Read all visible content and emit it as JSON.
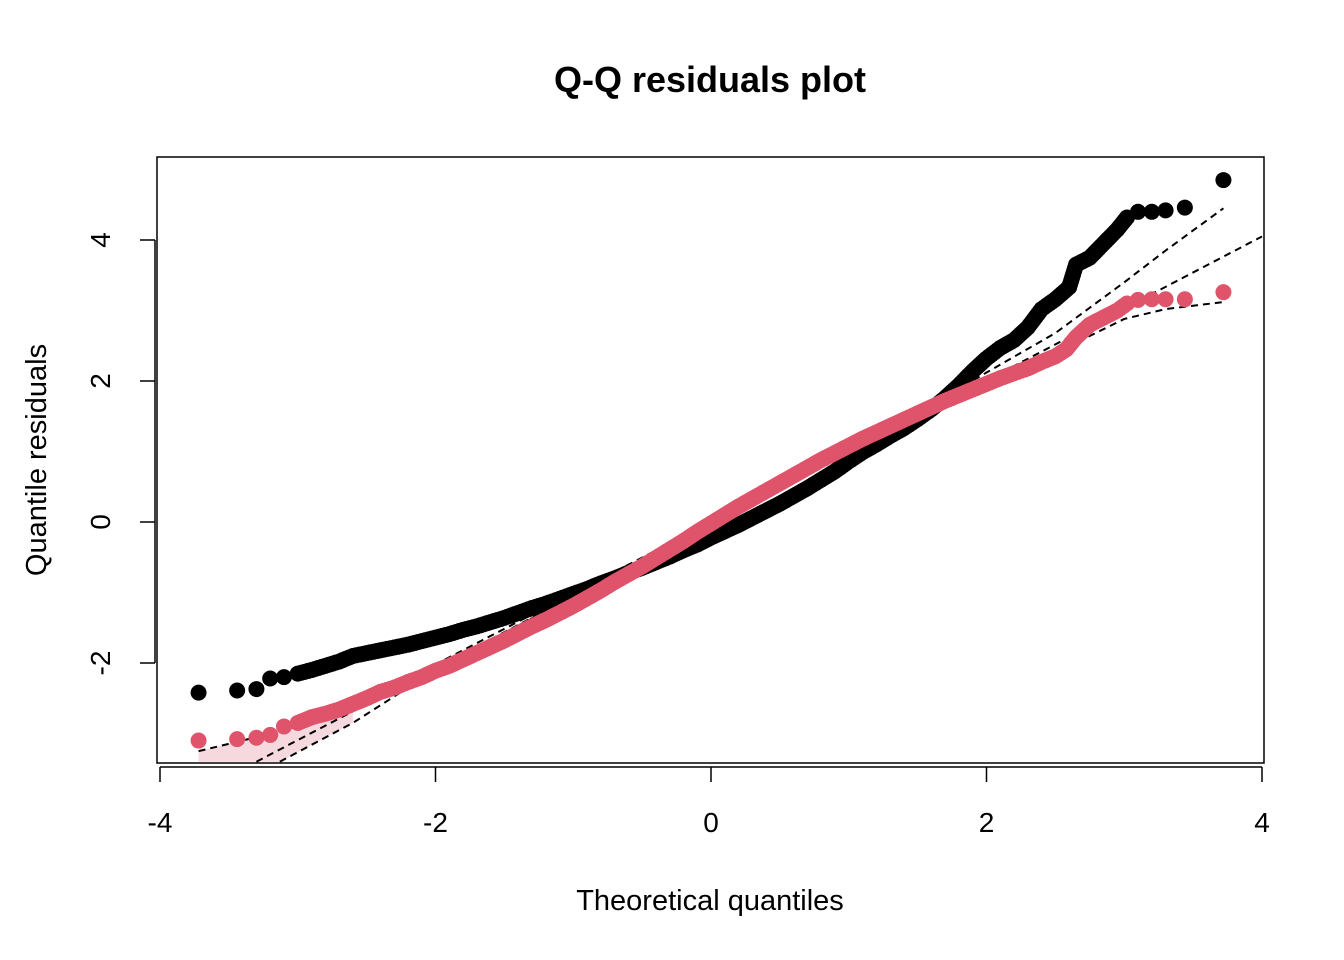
{
  "chart_data": {
    "type": "scatter",
    "title": "Q-Q residuals plot",
    "xlabel": "Theoretical quantiles",
    "ylabel": "Quantile residuals",
    "xlim": [
      -4,
      4
    ],
    "ylim": [
      -3.4,
      5.2
    ],
    "x_ticks": [
      "-4",
      "-2",
      "0",
      "2",
      "4"
    ],
    "y_ticks": [
      "-2",
      "0",
      "2",
      "4"
    ],
    "grid": false,
    "legend": "none",
    "series": [
      {
        "color": "#000000",
        "points": [
          [
            -3.72,
            -2.42
          ],
          [
            -3.44,
            -2.39
          ],
          [
            -3.3,
            -2.37
          ],
          [
            -3.2,
            -2.22
          ],
          [
            -3.1,
            -2.2
          ],
          [
            -3.0,
            -2.15
          ],
          [
            -2.9,
            -2.1
          ],
          [
            -2.8,
            -2.04
          ],
          [
            -2.7,
            -1.98
          ],
          [
            -2.6,
            -1.9
          ],
          [
            -2.5,
            -1.86
          ],
          [
            -2.4,
            -1.82
          ],
          [
            -2.3,
            -1.78
          ],
          [
            -2.2,
            -1.74
          ],
          [
            -2.1,
            -1.69
          ],
          [
            -2.0,
            -1.64
          ],
          [
            -1.9,
            -1.59
          ],
          [
            -1.8,
            -1.53
          ],
          [
            -1.7,
            -1.48
          ],
          [
            -1.6,
            -1.42
          ],
          [
            -1.5,
            -1.36
          ],
          [
            -1.4,
            -1.29
          ],
          [
            -1.3,
            -1.22
          ],
          [
            -1.2,
            -1.16
          ],
          [
            -1.1,
            -1.09
          ],
          [
            -1.0,
            -1.02
          ],
          [
            -0.9,
            -0.95
          ],
          [
            -0.8,
            -0.87
          ],
          [
            -0.7,
            -0.8
          ],
          [
            -0.6,
            -0.72
          ],
          [
            -0.5,
            -0.65
          ],
          [
            -0.4,
            -0.57
          ],
          [
            -0.3,
            -0.49
          ],
          [
            -0.2,
            -0.4
          ],
          [
            -0.1,
            -0.32
          ],
          [
            0.0,
            -0.22
          ],
          [
            0.1,
            -0.13
          ],
          [
            0.2,
            -0.04
          ],
          [
            0.3,
            0.06
          ],
          [
            0.4,
            0.16
          ],
          [
            0.5,
            0.26
          ],
          [
            0.6,
            0.37
          ],
          [
            0.7,
            0.48
          ],
          [
            0.8,
            0.6
          ],
          [
            0.9,
            0.72
          ],
          [
            1.0,
            0.86
          ],
          [
            1.1,
            0.99
          ],
          [
            1.2,
            1.1
          ],
          [
            1.3,
            1.22
          ],
          [
            1.4,
            1.33
          ],
          [
            1.5,
            1.46
          ],
          [
            1.6,
            1.6
          ],
          [
            1.7,
            1.76
          ],
          [
            1.8,
            1.94
          ],
          [
            1.9,
            2.14
          ],
          [
            2.0,
            2.32
          ],
          [
            2.1,
            2.47
          ],
          [
            2.2,
            2.58
          ],
          [
            2.3,
            2.76
          ],
          [
            2.4,
            3.02
          ],
          [
            2.5,
            3.16
          ],
          [
            2.6,
            3.33
          ],
          [
            2.65,
            3.65
          ],
          [
            2.75,
            3.75
          ],
          [
            2.85,
            3.95
          ],
          [
            2.95,
            4.15
          ],
          [
            3.02,
            4.32
          ],
          [
            3.1,
            4.4
          ],
          [
            3.2,
            4.4
          ],
          [
            3.3,
            4.42
          ],
          [
            3.44,
            4.46
          ],
          [
            3.72,
            4.85
          ]
        ]
      },
      {
        "color": "#DF536B",
        "points": [
          [
            -3.72,
            -3.1
          ],
          [
            -3.44,
            -3.08
          ],
          [
            -3.3,
            -3.06
          ],
          [
            -3.2,
            -3.02
          ],
          [
            -3.1,
            -2.9
          ],
          [
            -3.0,
            -2.85
          ],
          [
            -2.9,
            -2.77
          ],
          [
            -2.8,
            -2.72
          ],
          [
            -2.7,
            -2.66
          ],
          [
            -2.6,
            -2.58
          ],
          [
            -2.5,
            -2.5
          ],
          [
            -2.4,
            -2.41
          ],
          [
            -2.3,
            -2.35
          ],
          [
            -2.2,
            -2.27
          ],
          [
            -2.1,
            -2.2
          ],
          [
            -2.0,
            -2.11
          ],
          [
            -1.9,
            -2.04
          ],
          [
            -1.8,
            -1.95
          ],
          [
            -1.7,
            -1.86
          ],
          [
            -1.6,
            -1.77
          ],
          [
            -1.5,
            -1.68
          ],
          [
            -1.4,
            -1.58
          ],
          [
            -1.3,
            -1.48
          ],
          [
            -1.2,
            -1.39
          ],
          [
            -1.1,
            -1.29
          ],
          [
            -1.0,
            -1.19
          ],
          [
            -0.9,
            -1.08
          ],
          [
            -0.8,
            -0.97
          ],
          [
            -0.7,
            -0.85
          ],
          [
            -0.6,
            -0.74
          ],
          [
            -0.5,
            -0.63
          ],
          [
            -0.4,
            -0.51
          ],
          [
            -0.3,
            -0.39
          ],
          [
            -0.2,
            -0.27
          ],
          [
            -0.1,
            -0.14
          ],
          [
            0.0,
            -0.02
          ],
          [
            0.1,
            0.1
          ],
          [
            0.2,
            0.22
          ],
          [
            0.3,
            0.33
          ],
          [
            0.4,
            0.44
          ],
          [
            0.5,
            0.55
          ],
          [
            0.6,
            0.66
          ],
          [
            0.7,
            0.77
          ],
          [
            0.8,
            0.88
          ],
          [
            0.9,
            0.98
          ],
          [
            1.0,
            1.08
          ],
          [
            1.1,
            1.18
          ],
          [
            1.2,
            1.27
          ],
          [
            1.3,
            1.36
          ],
          [
            1.4,
            1.45
          ],
          [
            1.5,
            1.54
          ],
          [
            1.6,
            1.63
          ],
          [
            1.7,
            1.72
          ],
          [
            1.8,
            1.8
          ],
          [
            1.9,
            1.88
          ],
          [
            2.0,
            1.96
          ],
          [
            2.1,
            2.04
          ],
          [
            2.2,
            2.11
          ],
          [
            2.3,
            2.18
          ],
          [
            2.4,
            2.27
          ],
          [
            2.5,
            2.35
          ],
          [
            2.58,
            2.45
          ],
          [
            2.65,
            2.62
          ],
          [
            2.75,
            2.8
          ],
          [
            2.85,
            2.9
          ],
          [
            2.95,
            3.0
          ],
          [
            3.02,
            3.1
          ],
          [
            3.1,
            3.15
          ],
          [
            3.2,
            3.16
          ],
          [
            3.3,
            3.16
          ],
          [
            3.44,
            3.16
          ],
          [
            3.72,
            3.26
          ]
        ]
      }
    ],
    "reference_lines": [
      {
        "style": "dashed",
        "points": [
          [
            -3.3,
            -3.4
          ],
          [
            4.0,
            4.05
          ]
        ]
      },
      {
        "style": "dashed",
        "points": [
          [
            -3.13,
            -3.4
          ],
          [
            -2.6,
            -2.85
          ],
          [
            -2.0,
            -2.1
          ],
          [
            0.0,
            0.0
          ],
          [
            1.5,
            1.55
          ],
          [
            2.0,
            2.12
          ],
          [
            2.5,
            2.68
          ],
          [
            3.0,
            3.4
          ],
          [
            3.3,
            3.85
          ],
          [
            3.72,
            4.45
          ]
        ]
      },
      {
        "style": "dashed",
        "points": [
          [
            -3.72,
            -3.25
          ],
          [
            -3.4,
            -3.1
          ],
          [
            -3.0,
            -2.9
          ],
          [
            -2.6,
            -2.55
          ],
          [
            -2.0,
            -2.02
          ],
          [
            0.0,
            0.0
          ],
          [
            1.5,
            1.48
          ],
          [
            2.0,
            1.92
          ],
          [
            2.5,
            2.4
          ],
          [
            3.0,
            2.88
          ],
          [
            3.3,
            3.02
          ],
          [
            3.72,
            3.12
          ]
        ]
      }
    ],
    "confidence_band": {
      "color": "#F6D9DE",
      "points": [
        [
          -3.72,
          -3.4
        ],
        [
          -3.72,
          -3.25
        ],
        [
          -3.4,
          -3.1
        ],
        [
          -3.0,
          -2.9
        ],
        [
          -2.6,
          -2.55
        ],
        [
          -2.6,
          -2.85
        ],
        [
          -3.13,
          -3.4
        ]
      ]
    }
  }
}
